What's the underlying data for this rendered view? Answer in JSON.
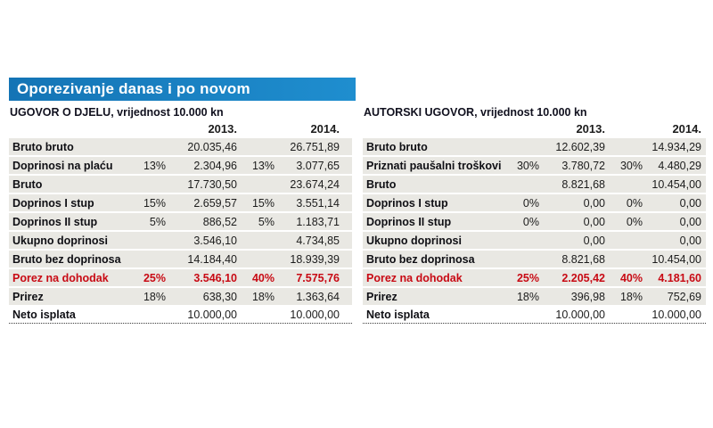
{
  "title": "Oporezivanje danas i po novom",
  "colors": {
    "title_bar_blue": "#1a82c4",
    "highlight_red": "#c80a14",
    "row_gray": "#e9e8e3"
  },
  "chart_data": [
    {
      "type": "table",
      "title": "UGOVOR O DJELU, vrijednost 10.000 kn",
      "columns": [
        "2013.",
        "2014."
      ],
      "rows": [
        {
          "label": "Bruto bruto",
          "p13": "",
          "v13": "20.035,46",
          "p14": "",
          "v14": "26.751,89"
        },
        {
          "label": "Doprinosi na plaću",
          "p13": "13%",
          "v13": "2.304,96",
          "p14": "13%",
          "v14": "3.077,65"
        },
        {
          "label": "Bruto",
          "p13": "",
          "v13": "17.730,50",
          "p14": "",
          "v14": "23.674,24"
        },
        {
          "label": "Doprinos I stup",
          "p13": "15%",
          "v13": "2.659,57",
          "p14": "15%",
          "v14": "3.551,14"
        },
        {
          "label": "Doprinos II stup",
          "p13": "5%",
          "v13": "886,52",
          "p14": "5%",
          "v14": "1.183,71"
        },
        {
          "label": "Ukupno doprinosi",
          "p13": "",
          "v13": "3.546,10",
          "p14": "",
          "v14": "4.734,85"
        },
        {
          "label": "Bruto bez doprinosa",
          "p13": "",
          "v13": "14.184,40",
          "p14": "",
          "v14": "18.939,39"
        },
        {
          "label": "Porez na dohodak",
          "p13": "25%",
          "v13": "3.546,10",
          "p14": "40%",
          "v14": "7.575,76",
          "highlight": true
        },
        {
          "label": "Prirez",
          "p13": "18%",
          "v13": "638,30",
          "p14": "18%",
          "v14": "1.363,64"
        },
        {
          "label": "Neto isplata",
          "p13": "",
          "v13": "10.000,00",
          "p14": "",
          "v14": "10.000,00",
          "net": true
        }
      ]
    },
    {
      "type": "table",
      "title": "AUTORSKI UGOVOR, vrijednost 10.000 kn",
      "columns": [
        "2013.",
        "2014."
      ],
      "rows": [
        {
          "label": "Bruto bruto",
          "p13": "",
          "v13": "12.602,39",
          "p14": "",
          "v14": "14.934,29"
        },
        {
          "label": "Priznati paušalni troškovi",
          "p13": "30%",
          "v13": "3.780,72",
          "p14": "30%",
          "v14": "4.480,29"
        },
        {
          "label": "Bruto",
          "p13": "",
          "v13": "8.821,68",
          "p14": "",
          "v14": "10.454,00"
        },
        {
          "label": "Doprinos I stup",
          "p13": "0%",
          "v13": "0,00",
          "p14": "0%",
          "v14": "0,00"
        },
        {
          "label": "Doprinos II stup",
          "p13": "0%",
          "v13": "0,00",
          "p14": "0%",
          "v14": "0,00"
        },
        {
          "label": "Ukupno doprinosi",
          "p13": "",
          "v13": "0,00",
          "p14": "",
          "v14": "0,00"
        },
        {
          "label": "Bruto bez doprinosa",
          "p13": "",
          "v13": "8.821,68",
          "p14": "",
          "v14": "10.454,00"
        },
        {
          "label": "Porez na dohodak",
          "p13": "25%",
          "v13": "2.205,42",
          "p14": "40%",
          "v14": "4.181,60",
          "highlight": true
        },
        {
          "label": "Prirez",
          "p13": "18%",
          "v13": "396,98",
          "p14": "18%",
          "v14": "752,69"
        },
        {
          "label": "Neto isplata",
          "p13": "",
          "v13": "10.000,00",
          "p14": "",
          "v14": "10.000,00",
          "net": true
        }
      ]
    }
  ]
}
